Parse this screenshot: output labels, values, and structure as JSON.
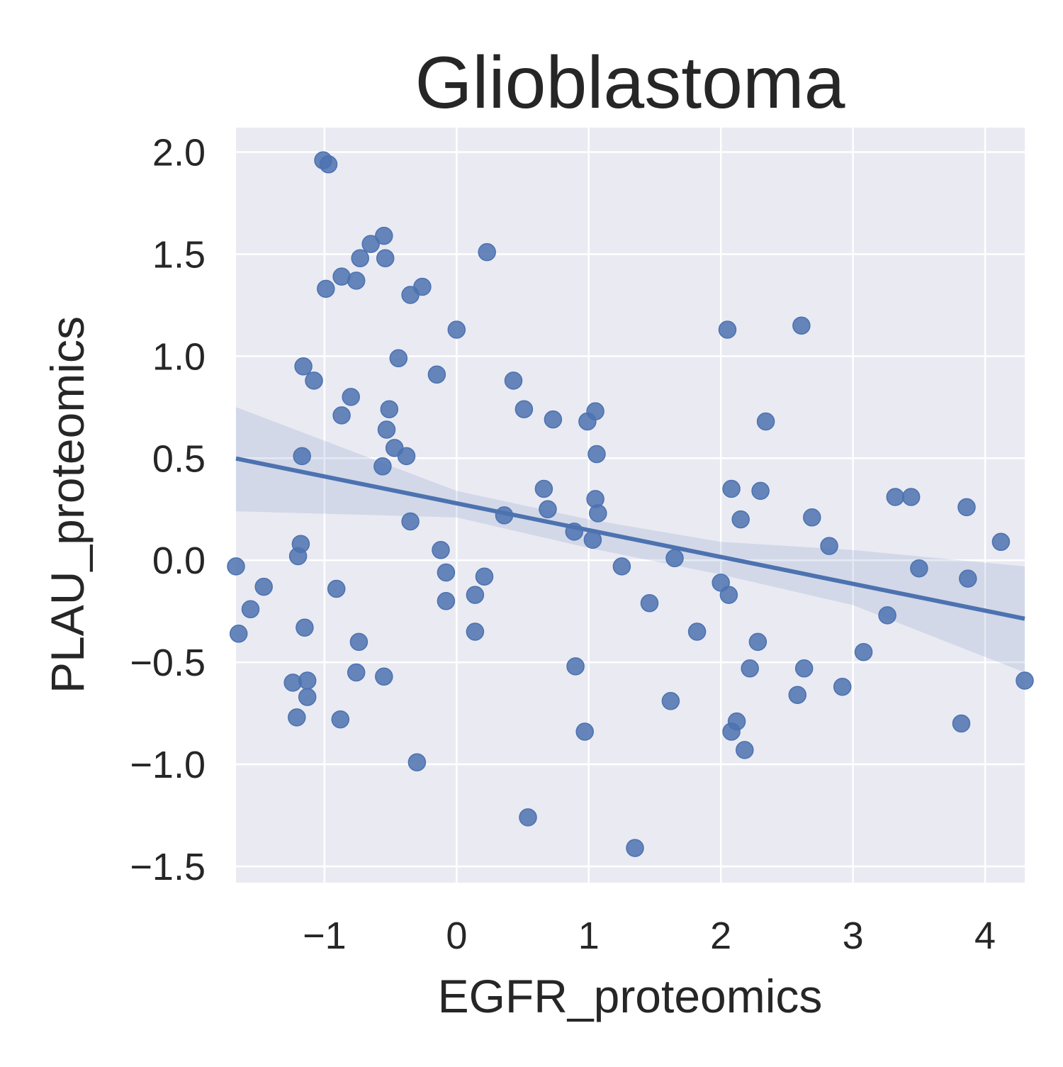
{
  "chart_data": {
    "type": "scatter",
    "title": "Glioblastoma",
    "xlabel": "EGFR_proteomics",
    "ylabel": "PLAU_proteomics",
    "xlim": [
      -1.67,
      4.3
    ],
    "ylim": [
      -1.58,
      2.12
    ],
    "xticks": [
      -1,
      0,
      1,
      2,
      3,
      4
    ],
    "xtick_labels": [
      "−1",
      "0",
      "1",
      "2",
      "3",
      "4"
    ],
    "yticks": [
      -1.5,
      -1.0,
      -0.5,
      0.0,
      0.5,
      1.0,
      1.5,
      2.0
    ],
    "ytick_labels": [
      "−1.5",
      "−1.0",
      "−0.5",
      "0.0",
      "0.5",
      "1.0",
      "1.5",
      "2.0"
    ],
    "grid": true,
    "background": "#eaeaf2",
    "grid_color": "#ffffff",
    "color": "#4c72b0",
    "points": [
      [
        -1.01,
        1.96
      ],
      [
        -0.97,
        1.94
      ],
      [
        -0.55,
        1.59
      ],
      [
        -0.65,
        1.55
      ],
      [
        -0.73,
        1.48
      ],
      [
        -0.54,
        1.48
      ],
      [
        -0.87,
        1.39
      ],
      [
        -0.76,
        1.37
      ],
      [
        -0.99,
        1.33
      ],
      [
        -0.26,
        1.34
      ],
      [
        -0.35,
        1.3
      ],
      [
        0.23,
        1.51
      ],
      [
        0.0,
        1.13
      ],
      [
        -0.44,
        0.99
      ],
      [
        -1.16,
        0.95
      ],
      [
        -1.08,
        0.88
      ],
      [
        -0.15,
        0.91
      ],
      [
        -0.8,
        0.8
      ],
      [
        -0.87,
        0.71
      ],
      [
        -0.51,
        0.74
      ],
      [
        -0.53,
        0.64
      ],
      [
        -0.47,
        0.55
      ],
      [
        -0.38,
        0.51
      ],
      [
        -0.56,
        0.46
      ],
      [
        -1.17,
        0.51
      ],
      [
        -0.35,
        0.19
      ],
      [
        -1.18,
        0.08
      ],
      [
        -1.2,
        0.02
      ],
      [
        -1.67,
        -0.03
      ],
      [
        -1.46,
        -0.13
      ],
      [
        -1.56,
        -0.24
      ],
      [
        -1.65,
        -0.36
      ],
      [
        -1.15,
        -0.33
      ],
      [
        -0.91,
        -0.14
      ],
      [
        -0.74,
        -0.4
      ],
      [
        -0.76,
        -0.55
      ],
      [
        -1.24,
        -0.6
      ],
      [
        -1.13,
        -0.59
      ],
      [
        -1.13,
        -0.67
      ],
      [
        -1.21,
        -0.77
      ],
      [
        -0.88,
        -0.78
      ],
      [
        -0.55,
        -0.57
      ],
      [
        -0.3,
        -0.99
      ],
      [
        -0.12,
        0.05
      ],
      [
        -0.08,
        -0.06
      ],
      [
        -0.08,
        -0.2
      ],
      [
        0.21,
        -0.08
      ],
      [
        0.14,
        -0.17
      ],
      [
        0.14,
        -0.35
      ],
      [
        0.36,
        0.22
      ],
      [
        0.43,
        0.88
      ],
      [
        0.51,
        0.74
      ],
      [
        0.73,
        0.69
      ],
      [
        0.66,
        0.35
      ],
      [
        0.69,
        0.25
      ],
      [
        0.89,
        0.14
      ],
      [
        0.99,
        0.68
      ],
      [
        1.05,
        0.73
      ],
      [
        1.06,
        0.52
      ],
      [
        1.05,
        0.3
      ],
      [
        1.07,
        0.23
      ],
      [
        1.03,
        0.1
      ],
      [
        0.9,
        -0.52
      ],
      [
        0.97,
        -0.84
      ],
      [
        0.54,
        -1.26
      ],
      [
        1.25,
        -0.03
      ],
      [
        1.46,
        -0.21
      ],
      [
        1.35,
        -1.41
      ],
      [
        1.62,
        -0.69
      ],
      [
        1.65,
        0.01
      ],
      [
        1.82,
        -0.35
      ],
      [
        2.05,
        1.13
      ],
      [
        2.08,
        0.35
      ],
      [
        2.15,
        0.2
      ],
      [
        2.3,
        0.34
      ],
      [
        2.34,
        0.68
      ],
      [
        2.0,
        -0.11
      ],
      [
        2.06,
        -0.17
      ],
      [
        2.28,
        -0.4
      ],
      [
        2.22,
        -0.53
      ],
      [
        2.12,
        -0.79
      ],
      [
        2.08,
        -0.84
      ],
      [
        2.18,
        -0.93
      ],
      [
        2.61,
        1.15
      ],
      [
        2.69,
        0.21
      ],
      [
        2.82,
        0.07
      ],
      [
        2.63,
        -0.53
      ],
      [
        2.58,
        -0.66
      ],
      [
        2.92,
        -0.62
      ],
      [
        3.08,
        -0.45
      ],
      [
        3.26,
        -0.27
      ],
      [
        3.32,
        0.31
      ],
      [
        3.44,
        0.31
      ],
      [
        3.5,
        -0.04
      ],
      [
        3.86,
        0.26
      ],
      [
        3.87,
        -0.09
      ],
      [
        3.82,
        -0.8
      ],
      [
        4.12,
        0.09
      ],
      [
        4.3,
        -0.59
      ]
    ],
    "regression": {
      "intercept": 0.279,
      "slope": -0.1315,
      "ci_upper": [
        [
          -1.67,
          0.75
        ],
        [
          0,
          0.34
        ],
        [
          1,
          0.2
        ],
        [
          2,
          0.09
        ],
        [
          3,
          0.05
        ],
        [
          4.3,
          -0.03
        ]
      ],
      "ci_lower": [
        [
          -1.67,
          0.24
        ],
        [
          0,
          0.21
        ],
        [
          1,
          0.06
        ],
        [
          2,
          -0.07
        ],
        [
          3,
          -0.22
        ],
        [
          4.3,
          -0.55
        ]
      ]
    }
  }
}
